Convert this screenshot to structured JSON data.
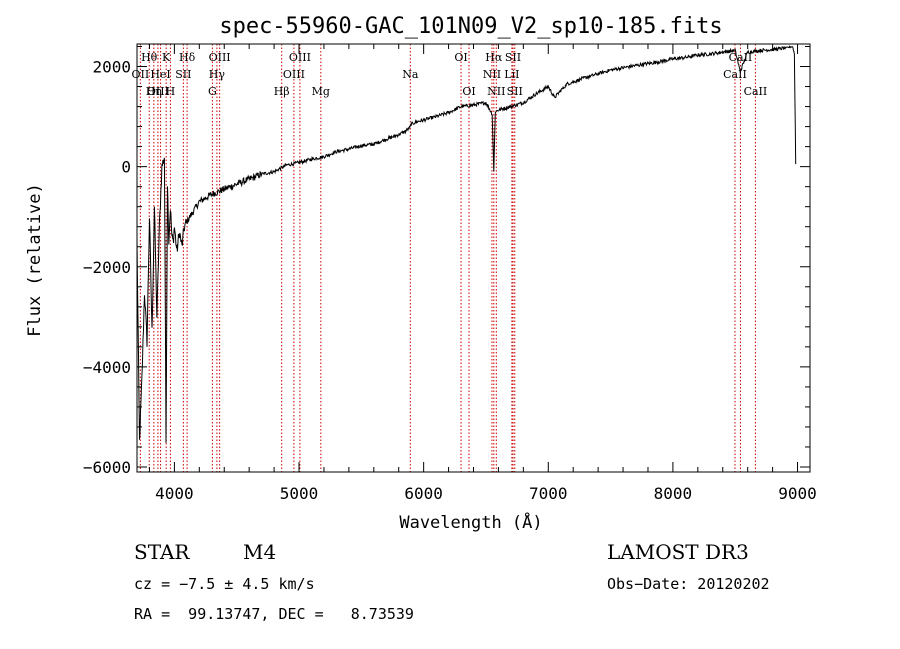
{
  "chart_data": {
    "type": "line",
    "title": "spec-55960-GAC_101N09_V2_sp10-185.fits",
    "xlabel": "Wavelength (Å)",
    "ylabel": "Flux (relative)",
    "xlim": [
      3700,
      9100
    ],
    "ylim": [
      -6100,
      2450
    ],
    "xticks": [
      4000,
      5000,
      6000,
      7000,
      8000,
      9000
    ],
    "xtick_labels": [
      "4000",
      "5000",
      "6000",
      "7000",
      "8000",
      "9000"
    ],
    "yticks": [
      -6000,
      -4000,
      -2000,
      0,
      2000
    ],
    "ytick_labels": [
      "−6000",
      "−4000",
      "−2000",
      "0",
      "2000"
    ],
    "series": [
      {
        "name": "flux",
        "x": [
          3700,
          3720,
          3740,
          3760,
          3780,
          3800,
          3820,
          3840,
          3860,
          3880,
          3900,
          3920,
          3933,
          3945,
          3955,
          3968,
          3980,
          3990,
          4000,
          4020,
          4040,
          4060,
          4080,
          4100,
          4150,
          4200,
          4300,
          4400,
          4500,
          4600,
          4700,
          4800,
          4900,
          5000,
          5100,
          5200,
          5300,
          5400,
          5500,
          5600,
          5700,
          5780,
          5850,
          5890,
          5900,
          5950,
          6000,
          6100,
          6200,
          6300,
          6400,
          6500,
          6550,
          6563,
          6575,
          6600,
          6700,
          6800,
          6900,
          7000,
          7050,
          7100,
          7150,
          7300,
          7500,
          7700,
          7900,
          8000,
          8100,
          8200,
          8300,
          8400,
          8500,
          8540,
          8600,
          8700,
          8800,
          8900,
          8960,
          8975,
          8985
        ],
        "y": [
          -1500,
          -5500,
          -4200,
          -2500,
          -3500,
          -1000,
          -3300,
          -800,
          -3000,
          -1200,
          0,
          200,
          -5500,
          -300,
          -1500,
          -800,
          -1400,
          -1500,
          -1200,
          -1700,
          -1300,
          -1600,
          -1200,
          -1100,
          -900,
          -700,
          -550,
          -450,
          -350,
          -250,
          -150,
          -100,
          30,
          80,
          150,
          200,
          300,
          350,
          420,
          450,
          550,
          620,
          700,
          780,
          850,
          900,
          930,
          1000,
          1080,
          1200,
          1230,
          1280,
          1050,
          -100,
          1100,
          1130,
          1200,
          1280,
          1450,
          1600,
          1380,
          1520,
          1650,
          1780,
          1930,
          2020,
          2100,
          2150,
          2180,
          2230,
          2250,
          2290,
          2320,
          1900,
          2290,
          2320,
          2340,
          2370,
          2400,
          2250,
          50
        ]
      }
    ],
    "spectral_lines": [
      {
        "name": "Hθ",
        "wl": 3798,
        "row": 1
      },
      {
        "name": "OII",
        "wl": 3727,
        "row": 2
      },
      {
        "name": "OIII",
        "wl": 3868,
        "row": 3
      },
      {
        "name": "Hη",
        "wl": 3835,
        "row": 3
      },
      {
        "name": "Hδ",
        "wl": 4102,
        "row": 1
      },
      {
        "name": "HeI",
        "wl": 3889,
        "row": 2
      },
      {
        "name": "K",
        "wl": 3934,
        "row": 1
      },
      {
        "name": "H",
        "wl": 3968,
        "row": 3
      },
      {
        "name": "SII",
        "wl": 4072,
        "row": 2
      },
      {
        "name": "OIII",
        "wl": 4363,
        "row": 1
      },
      {
        "name": "Hγ",
        "wl": 4341,
        "row": 2
      },
      {
        "name": "G",
        "wl": 4305,
        "row": 3
      },
      {
        "name": "Hβ",
        "wl": 4861,
        "row": 3
      },
      {
        "name": "OIII",
        "wl": 5007,
        "row": 1
      },
      {
        "name": "OIII",
        "wl": 4959,
        "row": 2
      },
      {
        "name": "Mg",
        "wl": 5175,
        "row": 3
      },
      {
        "name": "Na",
        "wl": 5893,
        "row": 2
      },
      {
        "name": "OI",
        "wl": 6300,
        "row": 1
      },
      {
        "name": "OI",
        "wl": 6364,
        "row": 3
      },
      {
        "name": "Hα",
        "wl": 6563,
        "row": 1
      },
      {
        "name": "SII",
        "wl": 6717,
        "row": 1
      },
      {
        "name": "NII",
        "wl": 6548,
        "row": 2
      },
      {
        "name": "LiI",
        "wl": 6708,
        "row": 2
      },
      {
        "name": "NII",
        "wl": 6583,
        "row": 3
      },
      {
        "name": "SII",
        "wl": 6731,
        "row": 3
      },
      {
        "name": "CaII",
        "wl": 8542,
        "row": 1
      },
      {
        "name": "CaII",
        "wl": 8498,
        "row": 2
      },
      {
        "name": "CaII",
        "wl": 8662,
        "row": 3
      }
    ]
  },
  "footer": {
    "object_class": "STAR",
    "subclass": "M4",
    "survey": "LAMOST DR3",
    "cz": "cz = −7.5 ± 4.5 km/s",
    "obs_date": "Obs−Date: 20120202",
    "coords": "RA =  99.13747, DEC =   8.73539"
  },
  "colors": {
    "line": "#000000",
    "marker": "#cc0000",
    "axis": "#000000",
    "background": "#ffffff"
  }
}
